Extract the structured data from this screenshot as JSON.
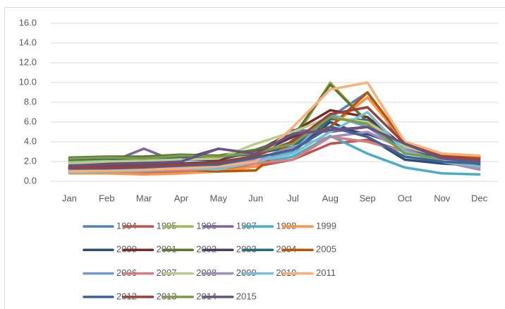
{
  "chart_data": {
    "type": "line",
    "categories": [
      "Jan",
      "Feb",
      "Mar",
      "Apr",
      "May",
      "Jun",
      "Jul",
      "Aug",
      "Sep",
      "Oct",
      "Nov",
      "Dec"
    ],
    "ylim": [
      0,
      16
    ],
    "yticks": [
      {
        "value": 0,
        "label": "0.0"
      },
      {
        "value": 2,
        "label": "2.0"
      },
      {
        "value": 4,
        "label": "4.0"
      },
      {
        "value": 6,
        "label": "6.0"
      },
      {
        "value": 8,
        "label": "8.0"
      },
      {
        "value": 10,
        "label": "10.0"
      },
      {
        "value": 12,
        "label": "12.0"
      },
      {
        "value": 14,
        "label": "14.0"
      },
      {
        "value": 16,
        "label": "16.0"
      }
    ],
    "grid": true,
    "legend": "bottom",
    "series": [
      {
        "name": "1994",
        "color": "#4f81bd",
        "values": [
          1.2,
          1.3,
          1.4,
          1.5,
          1.6,
          2.0,
          3.0,
          6.5,
          9.0,
          3.5,
          2.0,
          1.5
        ]
      },
      {
        "name": "1995",
        "color": "#c0504d",
        "values": [
          1.0,
          1.0,
          0.9,
          1.0,
          1.2,
          1.5,
          2.2,
          3.8,
          4.2,
          3.0,
          2.0,
          1.5
        ]
      },
      {
        "name": "1996",
        "color": "#9bbb59",
        "values": [
          2.0,
          2.1,
          2.2,
          2.4,
          2.5,
          3.0,
          4.0,
          10.0,
          6.0,
          3.0,
          2.5,
          2.0
        ]
      },
      {
        "name": "1997",
        "color": "#8064a2",
        "values": [
          1.5,
          1.8,
          3.3,
          1.8,
          1.6,
          2.2,
          5.2,
          5.0,
          5.5,
          3.5,
          2.0,
          1.2
        ]
      },
      {
        "name": "1998",
        "color": "#4bacc6",
        "values": [
          1.0,
          1.0,
          1.0,
          1.2,
          1.3,
          1.8,
          2.5,
          4.6,
          2.8,
          1.4,
          0.8,
          0.7
        ]
      },
      {
        "name": "1999",
        "color": "#f79646",
        "values": [
          0.8,
          0.8,
          0.7,
          0.8,
          1.0,
          1.5,
          3.5,
          5.5,
          8.5,
          4.0,
          2.8,
          2.6
        ]
      },
      {
        "name": "2000",
        "color": "#2c4d75",
        "values": [
          1.5,
          1.5,
          1.6,
          1.8,
          2.0,
          2.5,
          3.0,
          6.0,
          4.5,
          2.2,
          1.8,
          1.6
        ]
      },
      {
        "name": "2001",
        "color": "#772c2a",
        "values": [
          1.8,
          1.9,
          2.0,
          2.2,
          2.2,
          3.0,
          5.0,
          7.2,
          6.5,
          3.5,
          2.5,
          2.4
        ]
      },
      {
        "name": "2002",
        "color": "#5f7530",
        "values": [
          2.4,
          2.5,
          2.5,
          2.7,
          2.6,
          3.2,
          4.5,
          9.8,
          6.0,
          3.0,
          2.6,
          2.5
        ]
      },
      {
        "name": "2003",
        "color": "#4d3b62",
        "values": [
          1.3,
          1.5,
          2.0,
          2.2,
          3.3,
          2.8,
          4.5,
          5.5,
          4.8,
          3.5,
          2.5,
          2.2
        ]
      },
      {
        "name": "2004",
        "color": "#276a7c",
        "values": [
          2.2,
          2.3,
          2.2,
          2.5,
          2.4,
          2.8,
          3.5,
          6.3,
          6.2,
          3.0,
          2.5,
          2.3
        ]
      },
      {
        "name": "2005",
        "color": "#b65708",
        "values": [
          1.0,
          1.0,
          1.1,
          1.2,
          1.0,
          1.1,
          4.2,
          5.5,
          9.0,
          4.0,
          2.6,
          2.4
        ]
      },
      {
        "name": "2006",
        "color": "#729aca",
        "values": [
          1.1,
          1.2,
          1.3,
          1.5,
          1.4,
          2.0,
          3.0,
          6.8,
          5.5,
          3.0,
          2.0,
          1.5
        ]
      },
      {
        "name": "2007",
        "color": "#d4807e",
        "values": [
          0.9,
          1.0,
          1.0,
          1.1,
          1.3,
          1.8,
          2.2,
          4.5,
          4.0,
          3.0,
          2.0,
          1.2
        ]
      },
      {
        "name": "2008",
        "color": "#b7cd8b",
        "values": [
          1.8,
          2.0,
          2.1,
          2.2,
          2.3,
          3.8,
          5.0,
          6.5,
          6.0,
          3.5,
          2.5,
          2.0
        ]
      },
      {
        "name": "2009",
        "color": "#a08fbb",
        "values": [
          1.2,
          1.3,
          1.5,
          1.7,
          1.8,
          2.2,
          3.5,
          4.5,
          5.0,
          3.2,
          2.0,
          1.3
        ]
      },
      {
        "name": "2010",
        "color": "#76c0d4",
        "values": [
          0.9,
          1.0,
          1.1,
          1.3,
          1.2,
          2.0,
          2.8,
          5.0,
          7.0,
          3.0,
          2.0,
          1.5
        ]
      },
      {
        "name": "2011",
        "color": "#f9b07b",
        "values": [
          1.0,
          1.1,
          1.2,
          1.3,
          1.5,
          2.0,
          5.5,
          9.3,
          10.0,
          4.0,
          2.8,
          2.6
        ]
      },
      {
        "name": "2012",
        "color": "#3a6599",
        "values": [
          1.3,
          1.3,
          1.4,
          1.6,
          1.7,
          2.4,
          3.2,
          5.5,
          4.5,
          2.5,
          2.0,
          1.8
        ]
      },
      {
        "name": "2013",
        "color": "#9c403c",
        "values": [
          1.4,
          1.4,
          1.5,
          1.7,
          1.9,
          2.6,
          4.0,
          6.8,
          7.5,
          3.8,
          2.5,
          2.2
        ]
      },
      {
        "name": "2014",
        "color": "#7d9a48",
        "values": [
          2.3,
          2.4,
          2.3,
          2.6,
          2.5,
          2.9,
          3.8,
          6.5,
          5.8,
          2.8,
          2.3,
          2.0
        ]
      },
      {
        "name": "2015",
        "color": "#6a5283",
        "values": [
          1.6,
          1.7,
          1.8,
          2.0,
          3.3,
          2.8,
          4.8,
          5.2,
          5.5,
          3.8,
          2.3,
          2.0
        ]
      }
    ]
  }
}
